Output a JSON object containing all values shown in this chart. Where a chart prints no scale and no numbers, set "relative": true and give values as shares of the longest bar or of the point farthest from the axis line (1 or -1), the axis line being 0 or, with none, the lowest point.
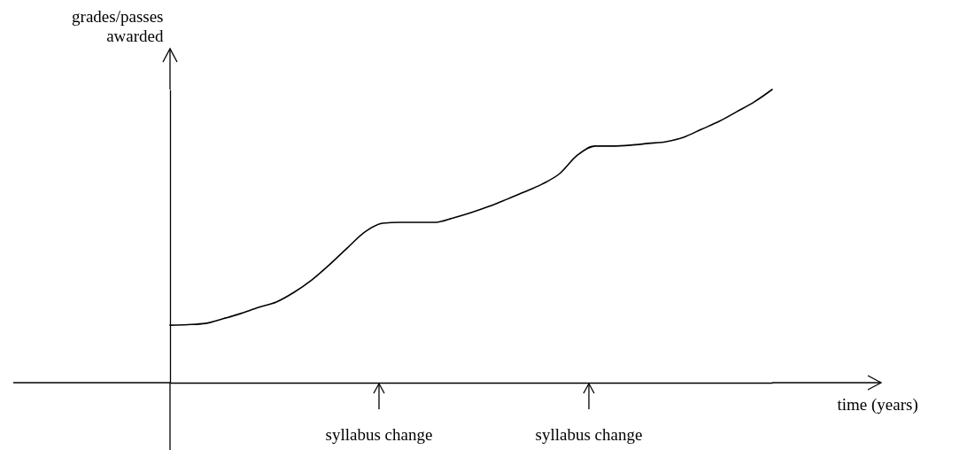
{
  "chart_data": {
    "type": "line",
    "relative": true,
    "xlabel": "time (years)",
    "ylabel": "grades/passes awarded",
    "categories": [
      null,
      null,
      null,
      null,
      null,
      null,
      null,
      null,
      null,
      null,
      null,
      null,
      null,
      null,
      null,
      null,
      null,
      null,
      null,
      null,
      null,
      null,
      null,
      null,
      null,
      null,
      null,
      null,
      null,
      null,
      null,
      null,
      null,
      null,
      null
    ],
    "series": [
      {
        "color": "#000000",
        "values": [
          0.196,
          0.198,
          0.202,
          0.218,
          0.236,
          0.257,
          0.275,
          0.308,
          0.35,
          0.402,
          0.459,
          0.514,
          0.544,
          0.547,
          0.547,
          0.547,
          0.562,
          0.58,
          0.601,
          0.625,
          0.65,
          0.677,
          0.713,
          0.776,
          0.807,
          0.807,
          0.81,
          0.816,
          0.822,
          0.837,
          0.864,
          0.891,
          0.924,
          0.958,
          1
        ]
      }
    ],
    "annotations": [
      "syllabus change",
      "syllabus change"
    ],
    "grid": false,
    "marker": "none",
    "line_style": "solid"
  }
}
